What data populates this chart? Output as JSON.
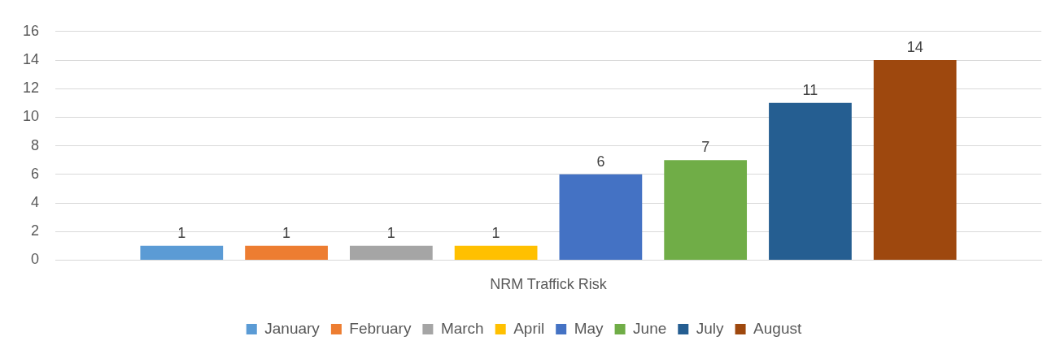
{
  "chart_data": {
    "type": "bar",
    "categories": [
      "NRM Traffick Risk"
    ],
    "series": [
      {
        "name": "January",
        "color": "#5b9bd5",
        "values": [
          1
        ]
      },
      {
        "name": "February",
        "color": "#ed7d31",
        "values": [
          1
        ]
      },
      {
        "name": "March",
        "color": "#a5a5a5",
        "values": [
          1
        ]
      },
      {
        "name": "April",
        "color": "#ffc000",
        "values": [
          1
        ]
      },
      {
        "name": "May",
        "color": "#4472c4",
        "values": [
          6
        ]
      },
      {
        "name": "June",
        "color": "#70ad47",
        "values": [
          7
        ]
      },
      {
        "name": "July",
        "color": "#255e91",
        "values": [
          11
        ]
      },
      {
        "name": "August",
        "color": "#9e480e",
        "values": [
          14
        ]
      }
    ],
    "ylim": [
      0,
      16
    ],
    "yticks": [
      0,
      2,
      4,
      6,
      8,
      10,
      12,
      14,
      16
    ],
    "grid": "y",
    "legend": "bottom",
    "data_labels": true
  }
}
